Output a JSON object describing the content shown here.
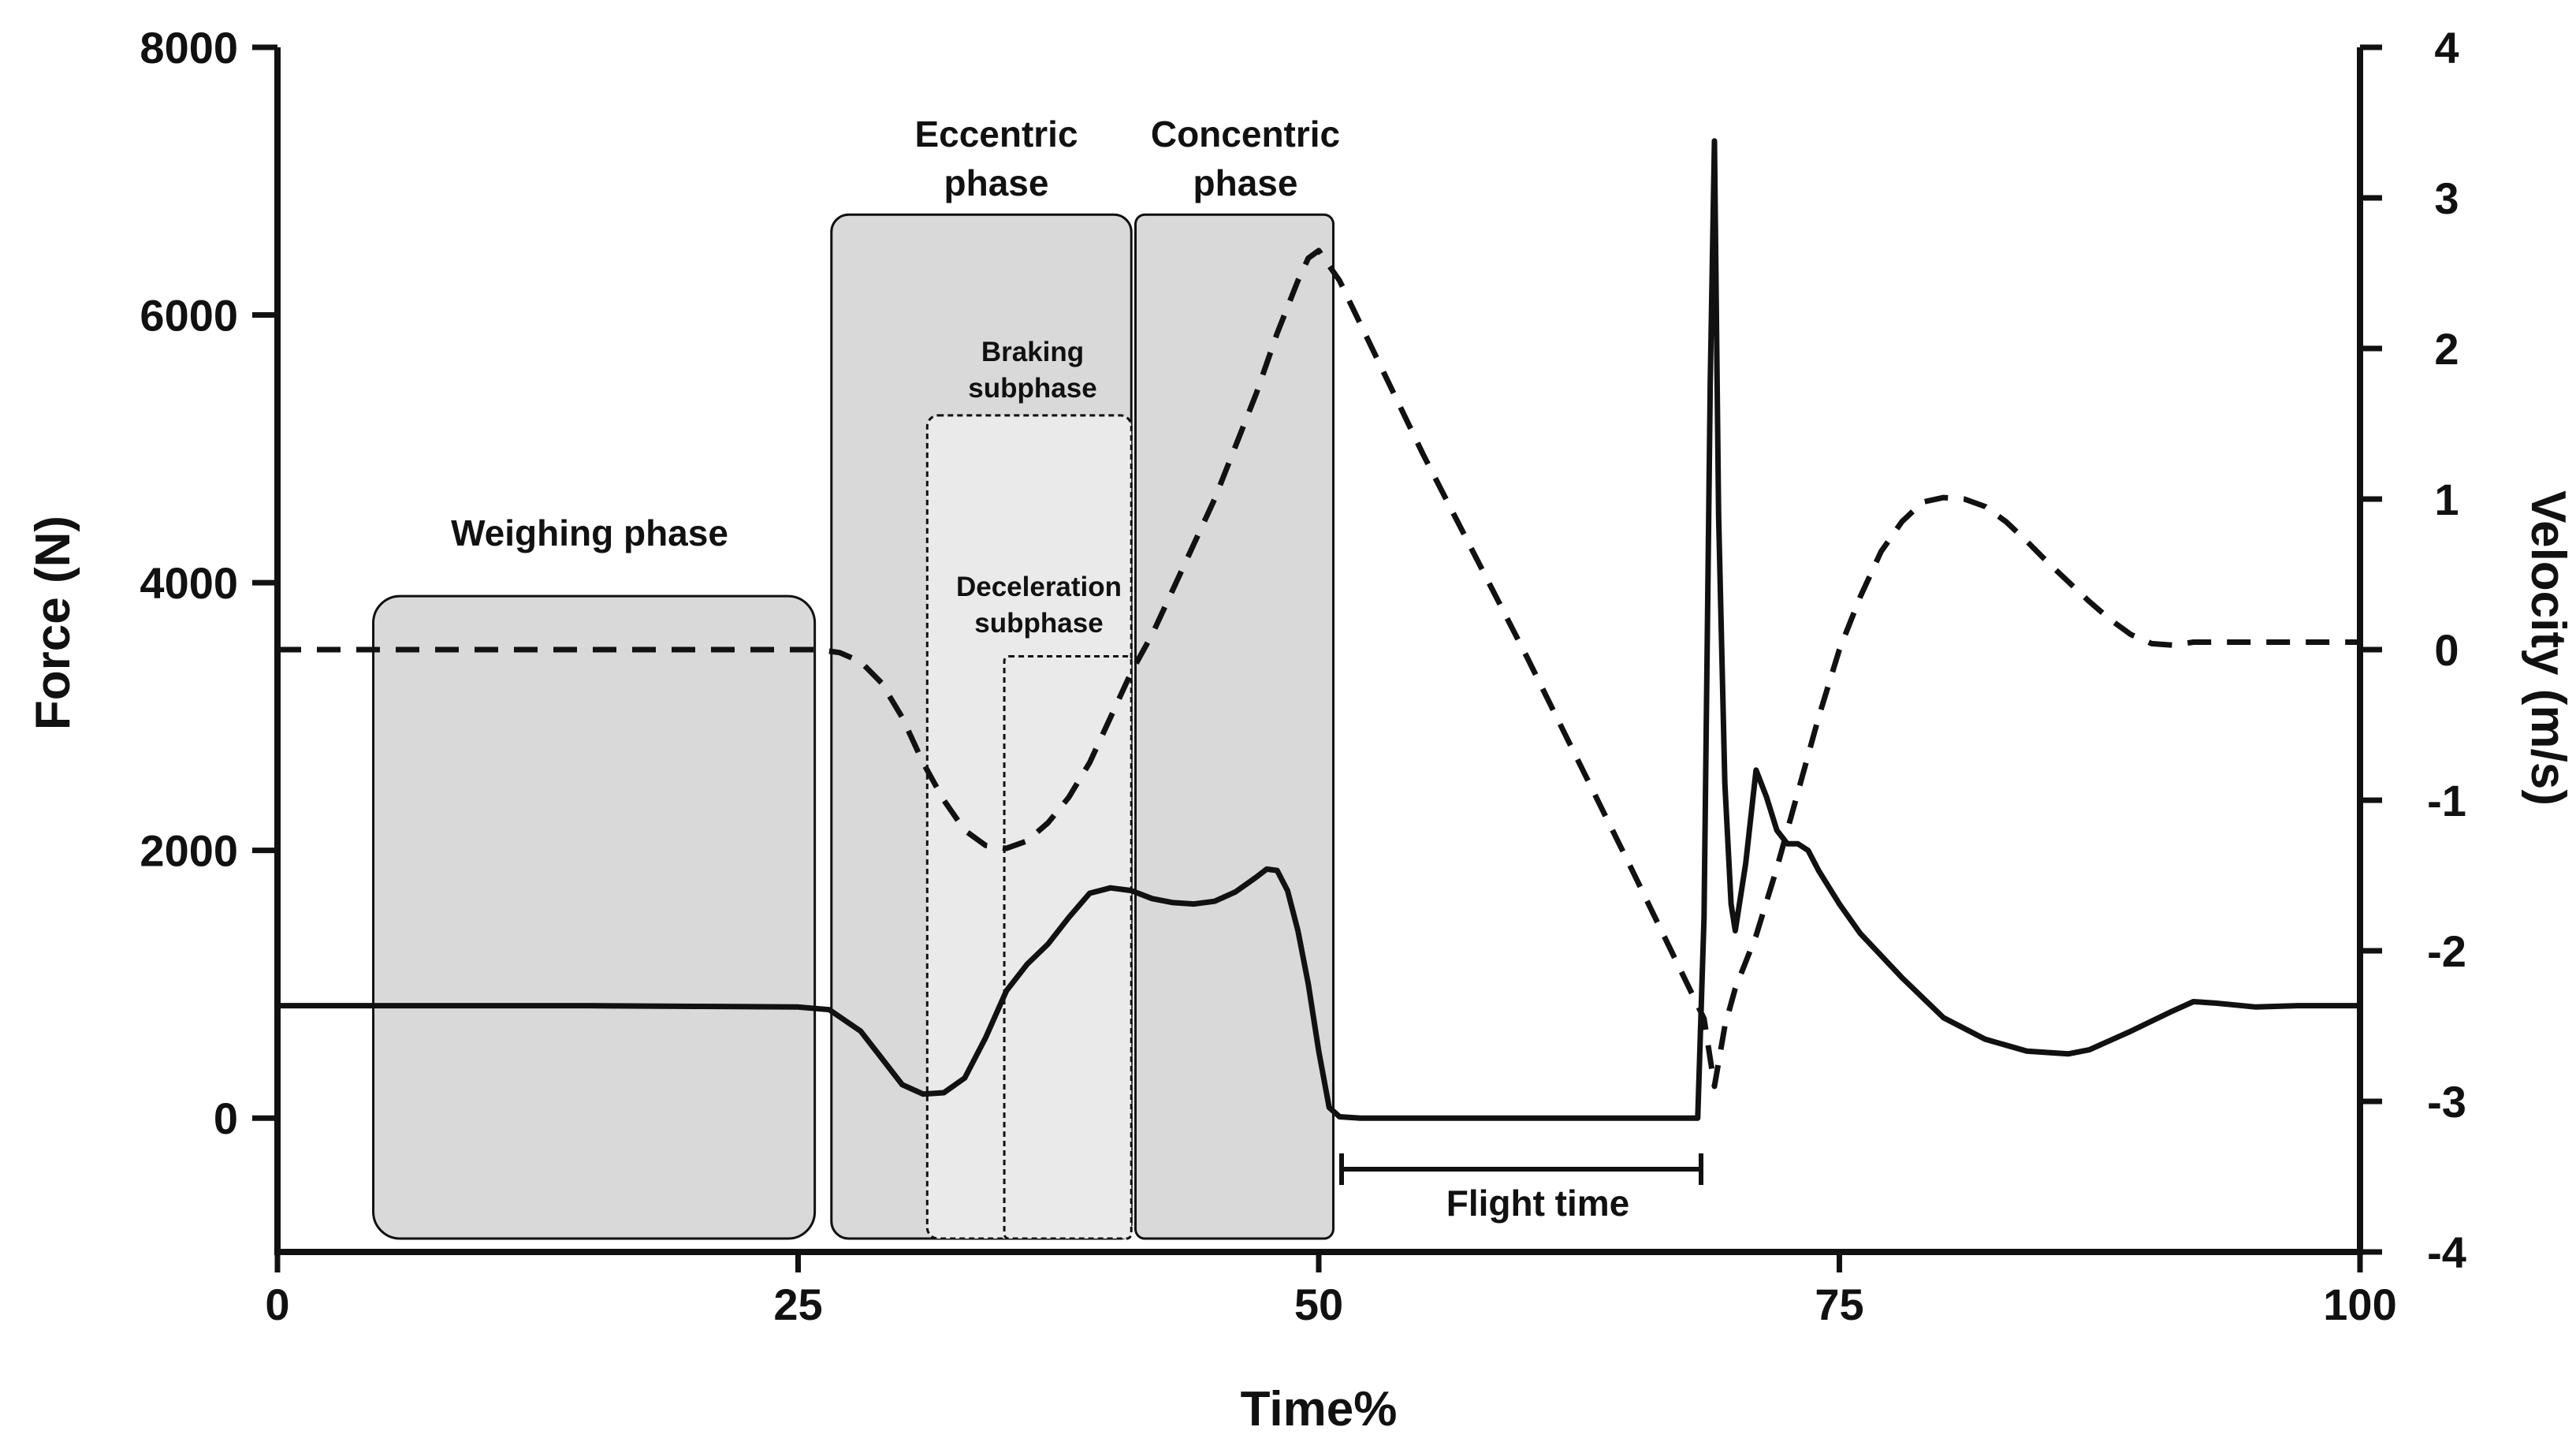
{
  "chart_data": {
    "type": "line",
    "xlabel": "Time%",
    "ylabel_left": "Force (N)",
    "ylabel_right": "Velocity (m/s)",
    "xlim": [
      0,
      100
    ],
    "ylim_left": [
      -1000,
      8000
    ],
    "ylim_right": [
      -4,
      4
    ],
    "x_ticks": [
      "0",
      "25",
      "50",
      "75",
      "100"
    ],
    "x_tick_values": [
      0,
      25,
      50,
      75,
      100
    ],
    "y_left_ticks": [
      "0",
      "2000",
      "4000",
      "6000",
      "8000"
    ],
    "y_left_tick_values": [
      0,
      2000,
      4000,
      6000,
      8000
    ],
    "y_right_ticks": [
      "-4",
      "-3",
      "-2",
      "-1",
      "0",
      "1",
      "2",
      "3",
      "4"
    ],
    "y_right_tick_values": [
      -4,
      -3,
      -2,
      -1,
      0,
      1,
      2,
      3,
      4
    ],
    "grid": false,
    "series": [
      {
        "style": "solid",
        "axis": "left",
        "x": [
          0,
          5,
          10,
          15,
          20,
          25,
          26.5,
          28,
          29,
          30,
          31,
          32,
          33,
          34,
          35,
          36,
          37,
          38,
          39,
          40,
          41,
          42,
          43,
          44,
          45,
          46,
          47,
          47.5,
          48,
          48.5,
          49,
          49.5,
          50,
          50.5,
          51,
          52,
          55,
          60,
          65,
          68.2,
          68.5,
          68.8,
          69,
          69.2,
          69.5,
          69.8,
          70,
          70.5,
          71,
          71.5,
          72,
          72.5,
          73,
          73.5,
          74,
          75,
          76,
          78,
          80,
          82,
          84,
          86,
          87,
          89,
          91,
          92,
          93,
          95,
          97,
          100
        ],
        "y": [
          840,
          840,
          840,
          840,
          835,
          830,
          810,
          650,
          450,
          250,
          180,
          190,
          300,
          600,
          950,
          1150,
          1300,
          1500,
          1680,
          1720,
          1700,
          1640,
          1610,
          1600,
          1620,
          1690,
          1800,
          1860,
          1850,
          1700,
          1400,
          1000,
          500,
          80,
          10,
          0,
          0,
          0,
          0,
          0,
          1500,
          5500,
          7300,
          4500,
          2500,
          1600,
          1400,
          1900,
          2600,
          2400,
          2150,
          2050,
          2050,
          2000,
          1850,
          1600,
          1380,
          1050,
          750,
          590,
          500,
          480,
          510,
          650,
          800,
          870,
          860,
          830,
          840,
          840
        ]
      },
      {
        "style": "dashed",
        "axis": "right",
        "x": [
          0,
          5,
          10,
          15,
          20,
          25,
          26,
          27,
          28,
          29,
          30,
          31,
          32,
          33,
          34,
          35,
          36,
          37,
          38,
          39,
          40,
          41,
          42,
          43,
          44,
          45,
          46,
          47,
          48,
          49,
          49.5,
          50,
          50.5,
          51,
          55,
          60,
          65,
          68.5,
          69,
          69.5,
          70,
          71,
          72,
          73,
          74,
          75,
          76,
          77,
          78,
          79,
          80,
          81,
          82,
          83,
          84,
          85,
          86,
          87,
          88,
          89,
          90,
          91,
          92,
          95,
          100
        ],
        "y": [
          0,
          0,
          0,
          0,
          0,
          0,
          0,
          -0.02,
          -0.08,
          -0.22,
          -0.45,
          -0.75,
          -1.0,
          -1.2,
          -1.3,
          -1.32,
          -1.27,
          -1.15,
          -0.98,
          -0.75,
          -0.45,
          -0.15,
          0.1,
          0.4,
          0.7,
          1.0,
          1.35,
          1.7,
          2.1,
          2.45,
          2.6,
          2.65,
          2.55,
          2.45,
          1.3,
          -0.05,
          -1.45,
          -2.45,
          -2.9,
          -2.5,
          -2.25,
          -1.9,
          -1.45,
          -0.95,
          -0.45,
          0,
          0.35,
          0.65,
          0.85,
          0.98,
          1.01,
          1.0,
          0.95,
          0.85,
          0.72,
          0.58,
          0.45,
          0.32,
          0.2,
          0.1,
          0.04,
          0.03,
          0.05,
          0.05,
          0.05
        ]
      }
    ],
    "annotations": {
      "weighing": "Weighing phase",
      "eccentric_1": "Eccentric",
      "eccentric_2": "phase",
      "concentric_1": "Concentric",
      "concentric_2": "phase",
      "braking_1": "Braking",
      "braking_2": "subphase",
      "deceleration_1": "Deceleration",
      "deceleration_2": "subphase",
      "flight": "Flight time"
    },
    "colors": {
      "line": "#111111",
      "phase_box": "#d9d9d9",
      "subphase_box": "#eaeaea",
      "axis": "#111111"
    }
  }
}
